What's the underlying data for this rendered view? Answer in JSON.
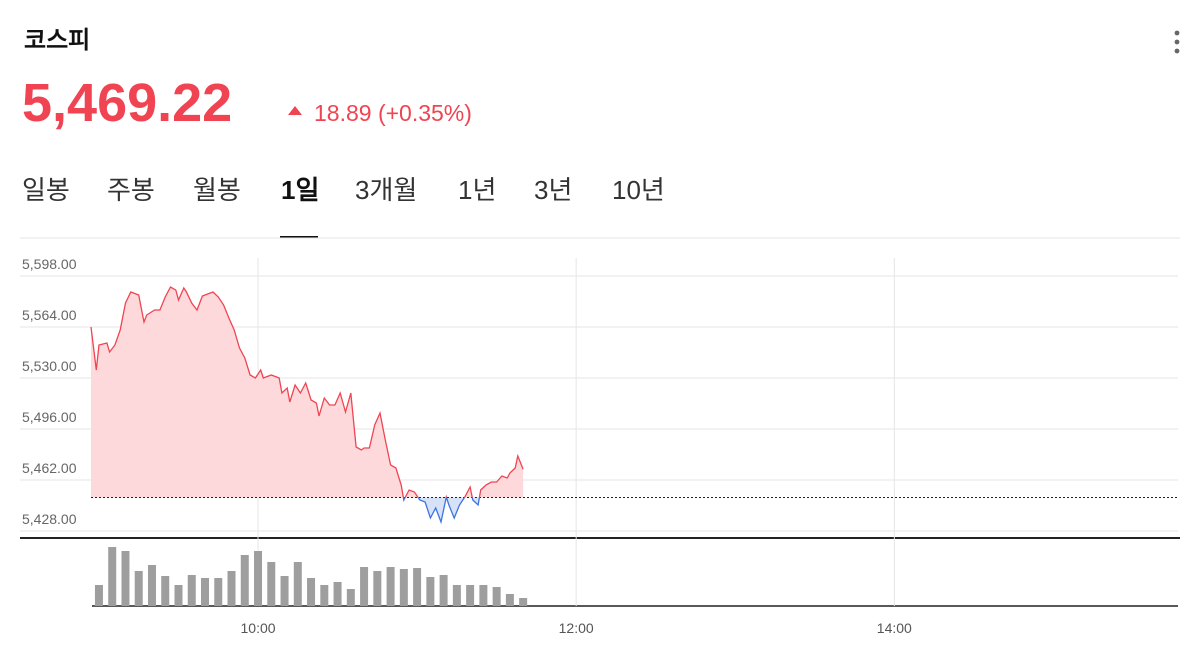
{
  "header": {
    "title": "코스피",
    "price": "5,469.22",
    "change": "18.89 (+0.35%)"
  },
  "tabs": [
    "일봉",
    "주봉",
    "월봉",
    "1일",
    "3개월",
    "1년",
    "3년",
    "10년"
  ],
  "selected_tab": 3,
  "chart_data": {
    "type": "line",
    "colors": {
      "up": "#f04452",
      "down": "#3d74e0",
      "up_fill": "#fdd9db",
      "down_fill": "#d6e2f7"
    },
    "previous_close": 5450.33,
    "xlim": [
      537,
      947
    ],
    "xticks": [
      {
        "value": 600,
        "label": "10:00"
      },
      {
        "value": 720,
        "label": "12:00"
      },
      {
        "value": 840,
        "label": "14:00"
      }
    ],
    "ylim": [
      5428,
      5610
    ],
    "yticks": [
      {
        "value": 5428,
        "label": "5,428.00"
      },
      {
        "value": 5462,
        "label": "5,462.00"
      },
      {
        "value": 5496,
        "label": "5,496.00"
      },
      {
        "value": 5530,
        "label": "5,530.00"
      },
      {
        "value": 5564,
        "label": "5,564.00"
      },
      {
        "value": 5598,
        "label": "5,598.00"
      }
    ],
    "grid": true,
    "series": [
      {
        "x": [
          537,
          539,
          540,
          543,
          544,
          546,
          548,
          550,
          552,
          555,
          557,
          558,
          561,
          563,
          565,
          567,
          569,
          570,
          572,
          573,
          575,
          577,
          579,
          580,
          583,
          585,
          587,
          589,
          591,
          593,
          595,
          597,
          599,
          601,
          602,
          605,
          608,
          609,
          611,
          612,
          614,
          616,
          618,
          620,
          622,
          623,
          625,
          627,
          629,
          631,
          633,
          635,
          637,
          639,
          640,
          642,
          644,
          646,
          648,
          650,
          652,
          654,
          655,
          657,
          659,
          661,
          663,
          665,
          667,
          669,
          671,
          672,
          674,
          676,
          678,
          680,
          681,
          683,
          684,
          686,
          688,
          690,
          692,
          694,
          695,
          697,
          698,
          700
        ],
        "values": [
          5564,
          5535.3,
          5552,
          5553.3,
          5547.3,
          5552,
          5562,
          5580,
          5587.3,
          5585.3,
          5567.3,
          5572,
          5575.3,
          5575.3,
          5584,
          5590.7,
          5588.7,
          5582,
          5590,
          5587.3,
          5580,
          5575.3,
          5584.7,
          5585.3,
          5587.3,
          5584,
          5578.7,
          5570,
          5562,
          5550,
          5543.3,
          5532,
          5530,
          5535.3,
          5530,
          5532,
          5530,
          5520,
          5523.3,
          5514,
          5525.3,
          5520,
          5526.7,
          5515.3,
          5513.3,
          5504.7,
          5516.7,
          5512,
          5512,
          5520,
          5507.3,
          5520,
          5484,
          5482,
          5483.3,
          5483.3,
          5498.7,
          5506.7,
          5488.7,
          5472,
          5470,
          5458.7,
          5448.7,
          5455.3,
          5454,
          5448.7,
          5447.3,
          5436.7,
          5443.3,
          5434,
          5450.7,
          5445.3,
          5436.7,
          5445.3,
          5450.7,
          5457.3,
          5448.7,
          5445.3,
          5455.3,
          5458.7,
          5460.7,
          5460.7,
          5464.7,
          5463.3,
          5466.7,
          5470,
          5478,
          5469.22
        ]
      }
    ],
    "volume": {
      "color": "#9e9e9e",
      "x": [
        540,
        545,
        550,
        555,
        560,
        565,
        570,
        575,
        580,
        585,
        590,
        595,
        600,
        605,
        610,
        615,
        620,
        625,
        630,
        635,
        640,
        645,
        650,
        655,
        660,
        665,
        670,
        675,
        680,
        685,
        690,
        695,
        700
      ],
      "values": [
        21,
        59,
        55,
        35,
        41,
        30,
        21,
        31,
        28,
        28,
        35,
        51,
        55,
        44,
        30,
        44,
        28,
        21,
        24,
        17,
        39,
        35,
        39,
        37,
        38,
        29,
        31,
        21,
        21,
        21,
        19,
        12,
        8
      ]
    }
  }
}
